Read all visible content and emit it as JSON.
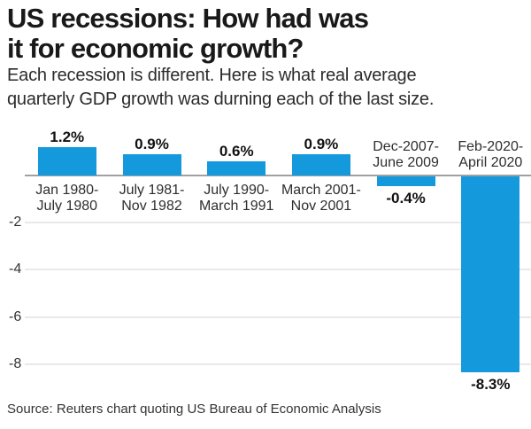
{
  "header": {
    "title_line1": "US recessions: How had was",
    "title_line2": "it for economic growth?",
    "subtitle_line1": "Each recession is different. Here is what real average",
    "subtitle_line2": "quarterly GDP growth was durning each of the last size."
  },
  "chart_data": {
    "type": "bar",
    "title": "US recessions: How had was it for economic growth?",
    "subtitle": "Each recession is different. Here is what real average quarterly GDP growth was durning each of the last size.",
    "categories": [
      "Jan 1980-\nJuly 1980",
      "July 1981-\nNov 1982",
      "July 1990-\nMarch 1991",
      "March 2001-\nNov 2001",
      "Dec-2007-\nJune 2009",
      "Feb-2020-\nApril 2020"
    ],
    "values": [
      1.2,
      0.9,
      0.6,
      0.9,
      -0.4,
      -8.3
    ],
    "value_labels": [
      "1.2%",
      "0.9%",
      "0.6%",
      "0.9%",
      "-0.4%",
      "-8.3%"
    ],
    "xlabel": "",
    "ylabel": "",
    "unit": "percent",
    "yticks": [
      -2,
      -4,
      -6,
      -8
    ],
    "ylim": [
      -8.8,
      1.6
    ],
    "grid": true,
    "legend_position": "none",
    "colors": {
      "bar": "#1499DC",
      "gridline": "#e9e9e9",
      "zero_axis": "#a0a0a0"
    }
  },
  "source": "Source: Reuters chart quoting US Bureau of Economic Analysis"
}
